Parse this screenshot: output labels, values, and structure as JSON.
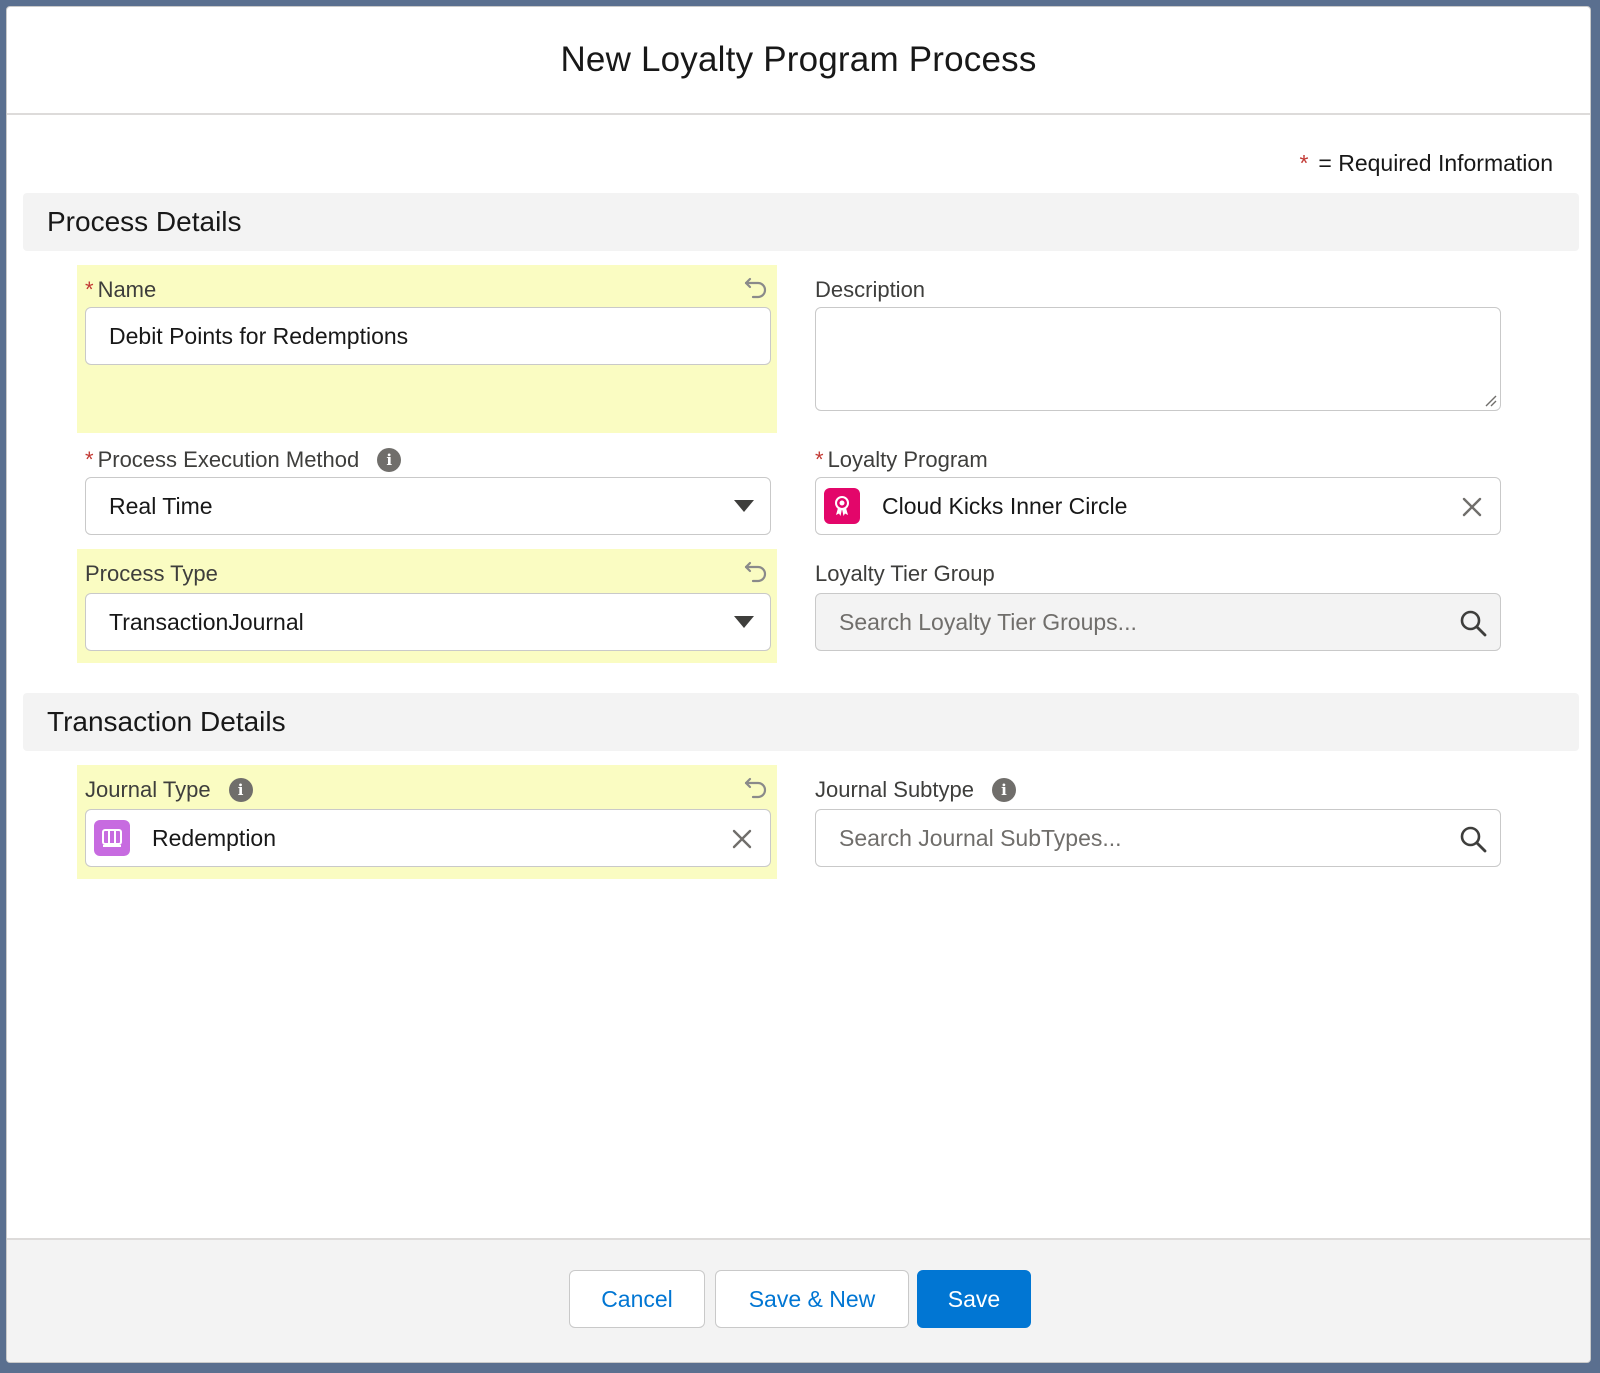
{
  "modal": {
    "title": "New Loyalty Program Process",
    "required_legend": {
      "star": "*",
      "text": "= Required Information"
    }
  },
  "sections": {
    "process_details": "Process Details",
    "transaction_details": "Transaction Details"
  },
  "fields": {
    "name": {
      "label": "Name",
      "required": "*",
      "value": "Debit Points for Redemptions"
    },
    "description": {
      "label": "Description",
      "value": ""
    },
    "process_execution_method": {
      "label": "Process Execution Method",
      "required": "*",
      "value": "Real Time",
      "info_icon": "i"
    },
    "loyalty_program": {
      "label": "Loyalty Program",
      "required": "*",
      "value": "Cloud Kicks Inner Circle",
      "icon_color": "#e3066a"
    },
    "process_type": {
      "label": "Process Type",
      "value": "TransactionJournal"
    },
    "loyalty_tier_group": {
      "label": "Loyalty Tier Group",
      "placeholder": "Search Loyalty Tier Groups..."
    },
    "journal_type": {
      "label": "Journal Type",
      "value": "Redemption",
      "info_icon": "i",
      "icon_color": "#c76be0"
    },
    "journal_subtype": {
      "label": "Journal Subtype",
      "placeholder": "Search Journal SubTypes...",
      "info_icon": "i"
    }
  },
  "footer": {
    "cancel": "Cancel",
    "save_new": "Save & New",
    "save": "Save"
  },
  "colors": {
    "brand": "#0176d3",
    "highlight": "#fafcc2",
    "required": "#c23934"
  }
}
